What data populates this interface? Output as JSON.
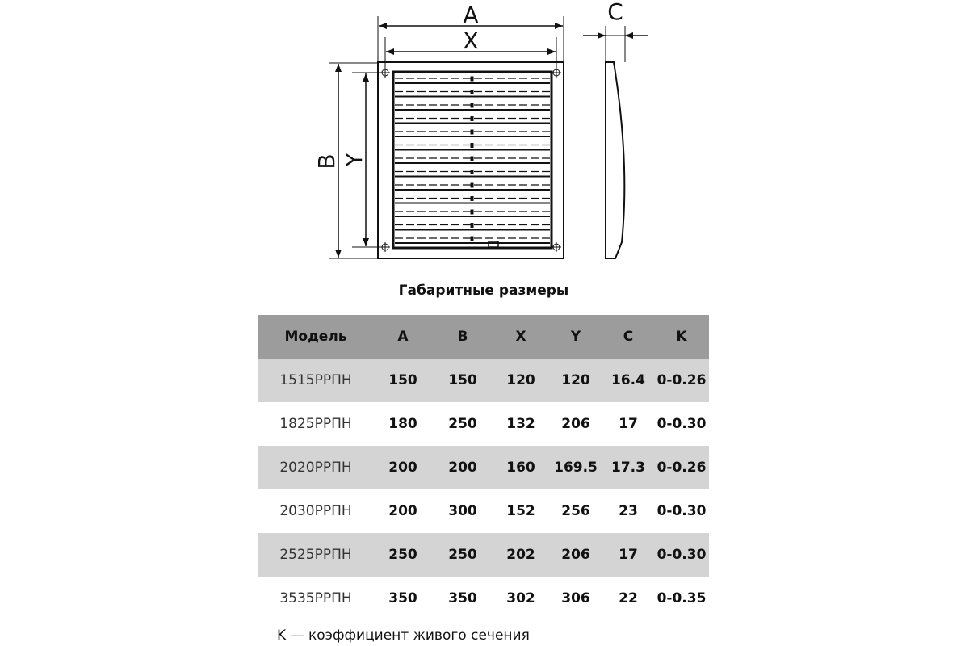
{
  "drawing": {
    "labels": {
      "a": "A",
      "x": "X",
      "b": "B",
      "y": "Y",
      "c": "C"
    }
  },
  "title": "Габаритные размеры",
  "table": {
    "headers": [
      "Модель",
      "A",
      "B",
      "X",
      "Y",
      "C",
      "K"
    ],
    "rows": [
      [
        "1515РРПН",
        "150",
        "150",
        "120",
        "120",
        "16.4",
        "0-0.26"
      ],
      [
        "1825РРПН",
        "180",
        "250",
        "132",
        "206",
        "17",
        "0-0.30"
      ],
      [
        "2020РРПН",
        "200",
        "200",
        "160",
        "169.5",
        "17.3",
        "0-0.26"
      ],
      [
        "2030РРПН",
        "200",
        "300",
        "152",
        "256",
        "23",
        "0-0.30"
      ],
      [
        "2525РРПН",
        "250",
        "250",
        "202",
        "206",
        "17",
        "0-0.30"
      ],
      [
        "3535РРПН",
        "350",
        "350",
        "302",
        "306",
        "22",
        "0-0.35"
      ]
    ]
  },
  "note": "K — коэффициент живого сечения",
  "colors": {
    "header_bg": "#9c9c9c",
    "alt_row_bg": "#d4d4d4"
  }
}
